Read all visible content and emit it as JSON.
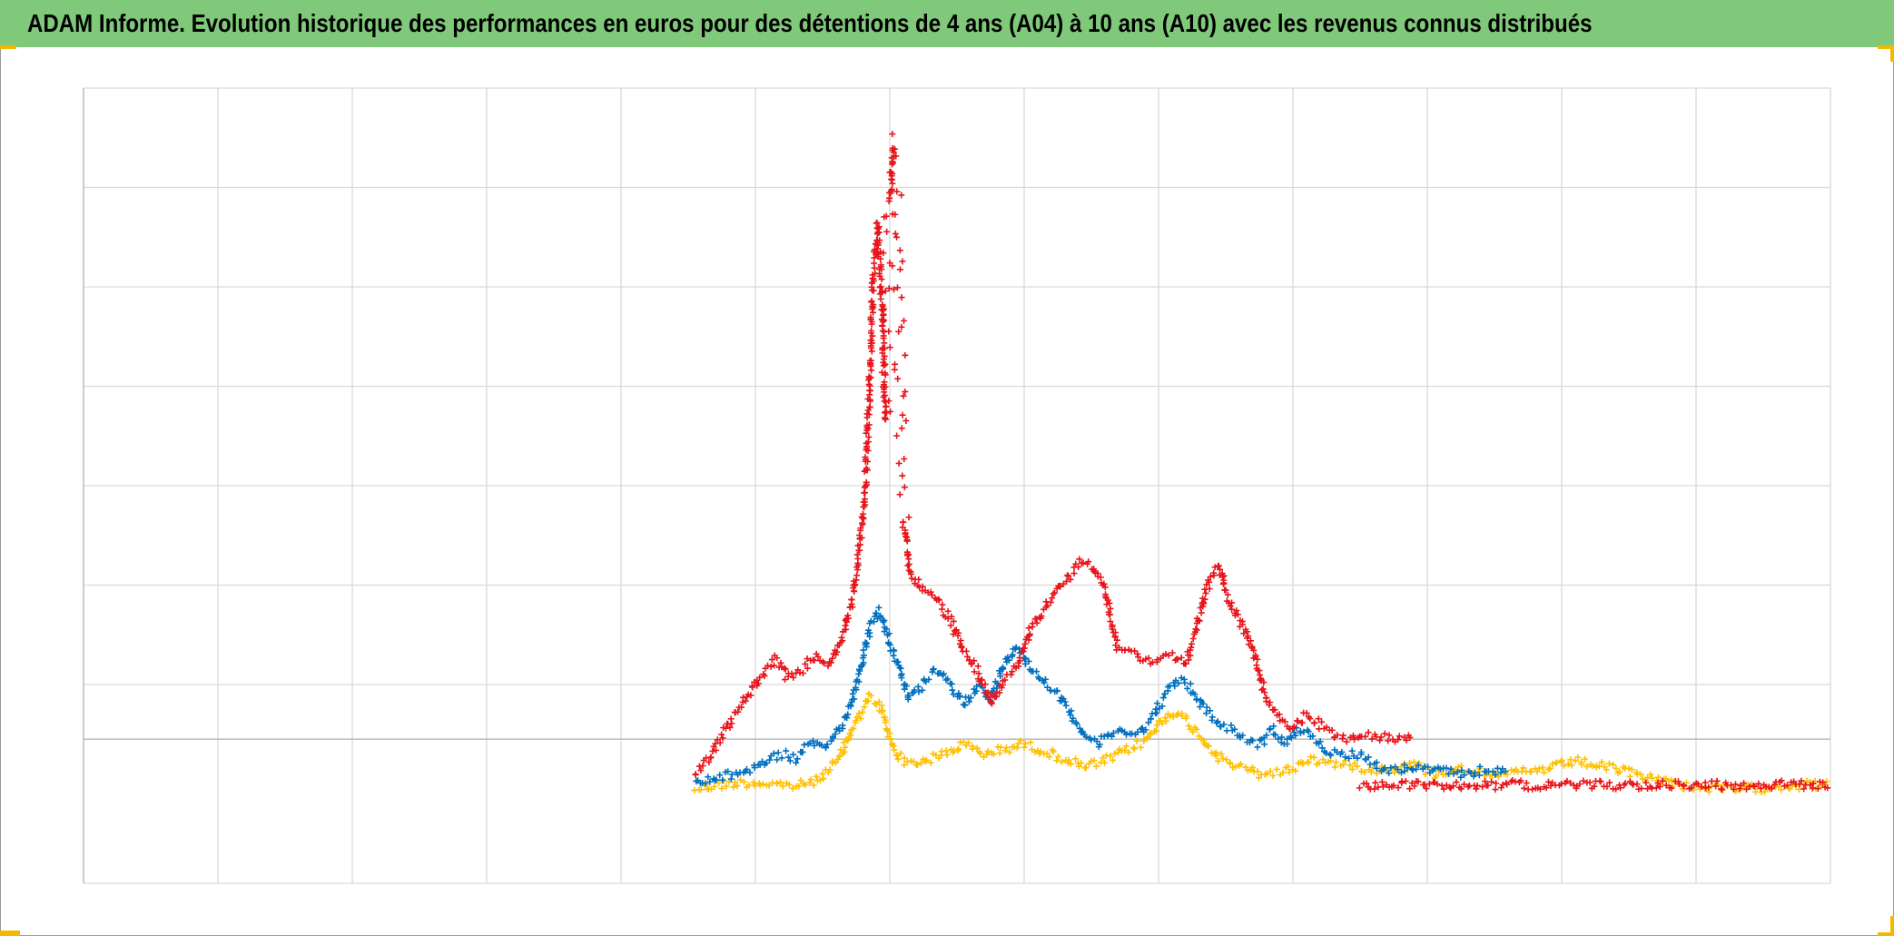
{
  "title": "ADAM Informe. Evolution historique des performances en euros pour des détentions de 4 ans (A04) à 10 ans (A10) avec les revenus connus distribués",
  "colors": {
    "title_bar": "#80c97a",
    "frame_border": "#9a9a9a",
    "grid": "#d9d9d9",
    "zero_line": "#bfbfbf",
    "handles": "#f5b800"
  },
  "chart_data": {
    "type": "scatter",
    "marker": "plus",
    "title": "ADAM Informe. Evolution historique des performances en euros pour des détentions de 4 ans (A04) à 10 ans (A10) avec les revenus connus distribués",
    "xlabel": "",
    "ylabel": "",
    "x_tick_labels": "none",
    "y_tick_labels": "none",
    "legend": "none",
    "xlim": [
      0,
      13
    ],
    "ylim": [
      -1.45,
      6.55
    ],
    "x_gridlines": [
      0,
      1,
      2,
      3,
      4,
      5,
      6,
      7,
      8,
      9,
      10,
      11,
      12,
      13
    ],
    "y_gridlines": [
      -1.45,
      0,
      0.55,
      1.55,
      2.55,
      3.55,
      4.55,
      5.55,
      6.55
    ],
    "zero_line_y": 0,
    "series": [
      {
        "color": "#ffc000",
        "points": [
          [
            4.55,
            -0.5
          ],
          [
            4.7,
            -0.47
          ],
          [
            4.85,
            -0.44
          ],
          [
            5.0,
            -0.44
          ],
          [
            5.15,
            -0.45
          ],
          [
            5.3,
            -0.47
          ],
          [
            5.45,
            -0.42
          ],
          [
            5.55,
            -0.3
          ],
          [
            5.62,
            -0.2
          ],
          [
            5.7,
            0.05
          ],
          [
            5.78,
            0.25
          ],
          [
            5.85,
            0.42
          ],
          [
            5.92,
            0.35
          ],
          [
            5.98,
            0.1
          ],
          [
            6.05,
            -0.15
          ],
          [
            6.15,
            -0.25
          ],
          [
            6.3,
            -0.2
          ],
          [
            6.45,
            -0.12
          ],
          [
            6.55,
            -0.05
          ],
          [
            6.7,
            -0.15
          ],
          [
            6.85,
            -0.1
          ],
          [
            7.0,
            -0.05
          ],
          [
            7.15,
            -0.12
          ],
          [
            7.3,
            -0.2
          ],
          [
            7.45,
            -0.28
          ],
          [
            7.6,
            -0.22
          ],
          [
            7.75,
            -0.12
          ],
          [
            7.9,
            -0.02
          ],
          [
            8.0,
            0.15
          ],
          [
            8.1,
            0.28
          ],
          [
            8.2,
            0.2
          ],
          [
            8.3,
            0.05
          ],
          [
            8.45,
            -0.18
          ],
          [
            8.6,
            -0.28
          ],
          [
            8.75,
            -0.35
          ],
          [
            8.9,
            -0.33
          ],
          [
            9.0,
            -0.3
          ],
          [
            9.1,
            -0.2
          ],
          [
            9.2,
            -0.22
          ],
          [
            9.35,
            -0.25
          ],
          [
            9.5,
            -0.28
          ],
          [
            9.6,
            -0.3
          ],
          [
            9.75,
            -0.3
          ],
          [
            9.9,
            -0.25
          ],
          [
            10.05,
            -0.35
          ],
          [
            10.2,
            -0.3
          ],
          [
            10.4,
            -0.32
          ],
          [
            10.6,
            -0.35
          ],
          [
            10.8,
            -0.32
          ],
          [
            10.95,
            -0.28
          ],
          [
            11.1,
            -0.22
          ],
          [
            11.25,
            -0.26
          ],
          [
            11.4,
            -0.3
          ],
          [
            11.55,
            -0.35
          ],
          [
            11.7,
            -0.4
          ],
          [
            11.85,
            -0.45
          ],
          [
            12.0,
            -0.48
          ],
          [
            12.2,
            -0.5
          ],
          [
            12.4,
            -0.5
          ],
          [
            12.6,
            -0.47
          ],
          [
            12.8,
            -0.46
          ],
          [
            13.0,
            -0.46
          ]
        ]
      },
      {
        "color": "#0070c0",
        "points": [
          [
            4.55,
            -0.45
          ],
          [
            4.7,
            -0.4
          ],
          [
            4.85,
            -0.35
          ],
          [
            5.0,
            -0.28
          ],
          [
            5.1,
            -0.2
          ],
          [
            5.2,
            -0.15
          ],
          [
            5.3,
            -0.2
          ],
          [
            5.4,
            -0.05
          ],
          [
            5.5,
            -0.1
          ],
          [
            5.6,
            0.05
          ],
          [
            5.7,
            0.3
          ],
          [
            5.78,
            0.7
          ],
          [
            5.85,
            1.1
          ],
          [
            5.92,
            1.3
          ],
          [
            5.98,
            1.05
          ],
          [
            6.05,
            0.8
          ],
          [
            6.15,
            0.4
          ],
          [
            6.25,
            0.55
          ],
          [
            6.35,
            0.7
          ],
          [
            6.45,
            0.55
          ],
          [
            6.55,
            0.35
          ],
          [
            6.65,
            0.55
          ],
          [
            6.75,
            0.4
          ],
          [
            6.85,
            0.75
          ],
          [
            6.95,
            0.95
          ],
          [
            7.05,
            0.7
          ],
          [
            7.15,
            0.6
          ],
          [
            7.25,
            0.45
          ],
          [
            7.35,
            0.25
          ],
          [
            7.45,
            0.05
          ],
          [
            7.55,
            -0.05
          ],
          [
            7.65,
            0.05
          ],
          [
            7.75,
            0.1
          ],
          [
            7.85,
            0.05
          ],
          [
            7.95,
            0.2
          ],
          [
            8.05,
            0.45
          ],
          [
            8.15,
            0.6
          ],
          [
            8.25,
            0.5
          ],
          [
            8.35,
            0.3
          ],
          [
            8.45,
            0.15
          ],
          [
            8.55,
            0.1
          ],
          [
            8.65,
            0.0
          ],
          [
            8.75,
            -0.05
          ],
          [
            8.85,
            0.1
          ],
          [
            8.95,
            -0.05
          ],
          [
            9.05,
            0.1
          ],
          [
            9.15,
            0.0
          ],
          [
            9.25,
            -0.1
          ],
          [
            9.35,
            -0.15
          ],
          [
            9.5,
            -0.15
          ],
          [
            9.65,
            -0.3
          ],
          [
            9.8,
            -0.3
          ],
          [
            10.0,
            -0.3
          ],
          [
            10.2,
            -0.35
          ],
          [
            10.4,
            -0.32
          ],
          [
            10.6,
            -0.32
          ]
        ]
      },
      {
        "color": "#e8141b",
        "points": [
          [
            4.55,
            -0.35
          ],
          [
            4.65,
            -0.2
          ],
          [
            4.75,
            0.05
          ],
          [
            4.85,
            0.25
          ],
          [
            4.95,
            0.45
          ],
          [
            5.05,
            0.65
          ],
          [
            5.15,
            0.8
          ],
          [
            5.25,
            0.6
          ],
          [
            5.35,
            0.7
          ],
          [
            5.45,
            0.85
          ],
          [
            5.55,
            0.75
          ],
          [
            5.65,
            1.0
          ],
          [
            5.72,
            1.4
          ],
          [
            5.78,
            2.0
          ],
          [
            5.82,
            2.6
          ],
          [
            5.85,
            3.6
          ],
          [
            5.88,
            4.7
          ],
          [
            5.91,
            5.2
          ],
          [
            5.94,
            4.4
          ],
          [
            5.97,
            3.2
          ],
          [
            6.0,
            5.4
          ],
          [
            6.03,
            6.0
          ],
          [
            6.06,
            4.5
          ],
          [
            6.1,
            2.2
          ],
          [
            6.15,
            1.7
          ],
          [
            6.25,
            1.5
          ],
          [
            6.35,
            1.4
          ],
          [
            6.45,
            1.2
          ],
          [
            6.55,
            0.9
          ],
          [
            6.65,
            0.7
          ],
          [
            6.75,
            0.35
          ],
          [
            6.85,
            0.6
          ],
          [
            6.95,
            0.75
          ],
          [
            7.05,
            1.1
          ],
          [
            7.15,
            1.3
          ],
          [
            7.25,
            1.5
          ],
          [
            7.35,
            1.65
          ],
          [
            7.42,
            1.8
          ],
          [
            7.5,
            1.75
          ],
          [
            7.6,
            1.5
          ],
          [
            7.7,
            0.9
          ],
          [
            7.8,
            0.9
          ],
          [
            7.9,
            0.8
          ],
          [
            8.0,
            0.8
          ],
          [
            8.1,
            0.85
          ],
          [
            8.2,
            0.75
          ],
          [
            8.3,
            1.2
          ],
          [
            8.38,
            1.6
          ],
          [
            8.45,
            1.75
          ],
          [
            8.52,
            1.4
          ],
          [
            8.6,
            1.2
          ],
          [
            8.7,
            0.9
          ],
          [
            8.8,
            0.4
          ],
          [
            8.9,
            0.2
          ],
          [
            9.0,
            0.1
          ],
          [
            9.1,
            0.25
          ],
          [
            9.2,
            0.15
          ],
          [
            9.3,
            0.05
          ],
          [
            9.4,
            0.0
          ],
          [
            9.5,
            0.0
          ],
          [
            9.6,
            0.05
          ],
          [
            9.7,
            0.0
          ],
          [
            9.8,
            0.0
          ],
          [
            9.9,
            0.0
          ]
        ]
      },
      {
        "color": "#e8141b",
        "points": [
          [
            9.5,
            -0.46
          ],
          [
            9.7,
            -0.46
          ],
          [
            9.9,
            -0.46
          ],
          [
            10.1,
            -0.46
          ],
          [
            10.3,
            -0.46
          ],
          [
            10.5,
            -0.46
          ],
          [
            10.7,
            -0.46
          ],
          [
            10.9,
            -0.46
          ],
          [
            11.1,
            -0.46
          ],
          [
            11.3,
            -0.46
          ],
          [
            11.5,
            -0.46
          ],
          [
            11.7,
            -0.46
          ],
          [
            11.9,
            -0.46
          ],
          [
            12.1,
            -0.46
          ],
          [
            12.3,
            -0.46
          ],
          [
            12.5,
            -0.46
          ],
          [
            12.7,
            -0.46
          ],
          [
            12.9,
            -0.46
          ],
          [
            13.0,
            -0.46
          ]
        ]
      }
    ]
  }
}
